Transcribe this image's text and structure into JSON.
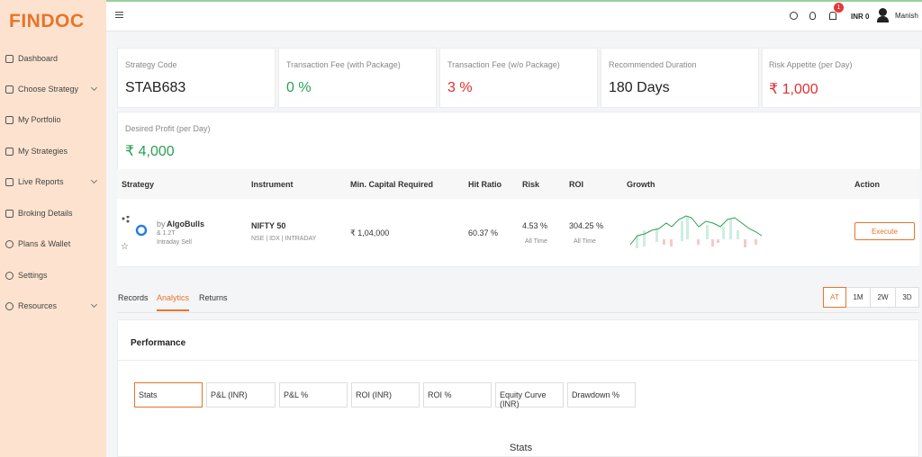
{
  "brand": {
    "name": "FINDOC"
  },
  "sidebar": {
    "items": [
      {
        "label": "Dashboard"
      },
      {
        "label": "Choose Strategy"
      },
      {
        "label": "My Portfolio"
      },
      {
        "label": "My Strategies"
      },
      {
        "label": "Live Reports"
      },
      {
        "label": "Broking Details"
      },
      {
        "label": "Plans & Wallet"
      },
      {
        "label": "Settings"
      },
      {
        "label": "Resources"
      }
    ]
  },
  "topbar": {
    "notifications": 1,
    "balance": "INR 0",
    "user": "Manish"
  },
  "cards": [
    {
      "label": "Strategy Code",
      "value": "STAB683"
    },
    {
      "label": "Transaction Fee (with Package)",
      "value": "0 %"
    },
    {
      "label": "Transaction Fee (w/o Package)",
      "value": "3 %"
    },
    {
      "label": "Recommended Duration",
      "value": "180 Days"
    },
    {
      "label": "Risk Appetite (per Day)",
      "value": "₹ 1,000"
    },
    {
      "label": "Desired Profit (per Day)",
      "value": "₹ 4,000"
    }
  ],
  "table": {
    "headers": [
      "Strategy",
      "Instrument",
      "Min. Capital Required",
      "Hit Ratio",
      "Risk",
      "ROI",
      "Growth",
      "Action"
    ],
    "row": {
      "by": "by",
      "provider": "AlgoBulls",
      "meta": "& 1.2T",
      "mode": "Intraday Sell",
      "instrument": "NIFTY 50",
      "instrument_detail": "NSE | IDX | INTRADAY",
      "capital": "₹ 1,04,000",
      "hit_ratio": "60.37 %",
      "risk": "4.53 %",
      "risk_period": "All Time",
      "roi": "304.25 %",
      "roi_period": "All Time",
      "action": "Execute"
    }
  },
  "tabs": [
    "Records",
    "Analytics",
    "Returns"
  ],
  "ranges": [
    "AT",
    "1M",
    "2W",
    "3D"
  ],
  "performance": {
    "title": "Performance",
    "tabs": [
      "Stats",
      "P&L (INR)",
      "P&L %",
      "ROI (INR)",
      "ROI %",
      "Equity Curve (INR)",
      "Drawdown %"
    ],
    "section": "Stats"
  }
}
